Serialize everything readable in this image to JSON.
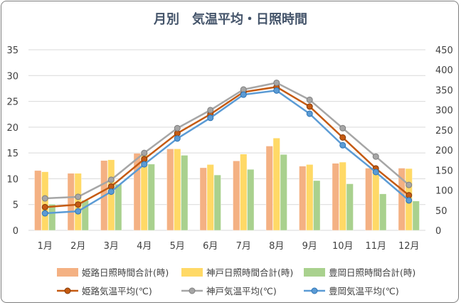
{
  "chart_data": {
    "type": "bar",
    "title": "月別　気温平均・日照時間",
    "categories": [
      "1月",
      "2月",
      "3月",
      "4月",
      "5月",
      "6月",
      "7月",
      "8月",
      "9月",
      "10月",
      "11月",
      "12月"
    ],
    "y_left": {
      "min": 0,
      "max": 35,
      "step": 5,
      "ticks": [
        "0",
        "5",
        "10",
        "15",
        "20",
        "25",
        "30",
        "35"
      ]
    },
    "y_right": {
      "min": 0,
      "max": 450,
      "step": 50,
      "ticks": [
        "0",
        "50",
        "100",
        "150",
        "200",
        "250",
        "300",
        "350",
        "400",
        "450"
      ]
    },
    "grid": true,
    "legend_position": "bottom",
    "bar_series": [
      {
        "name": "姫路日照時間合計(時)",
        "axis": "right",
        "color": "#f4b183",
        "values": [
          149,
          142,
          174,
          192,
          203,
          156,
          173,
          210,
          160,
          167,
          155,
          155
        ]
      },
      {
        "name": "神戸日照時間合計(時)",
        "axis": "right",
        "color": "#ffd966",
        "values": [
          146,
          142,
          176,
          193,
          203,
          164,
          190,
          230,
          164,
          170,
          150,
          154
        ]
      },
      {
        "name": "豊岡日照時間合計(時)",
        "axis": "right",
        "color": "#a9d18e",
        "values": [
          65,
          75,
          115,
          165,
          187,
          138,
          152,
          189,
          124,
          116,
          91,
          73
        ]
      }
    ],
    "line_series": [
      {
        "name": "姫路気温平均(℃)",
        "axis": "left",
        "color": "#c55a11",
        "values": [
          4.5,
          5.0,
          8.5,
          13.8,
          18.8,
          22.5,
          26.8,
          27.8,
          24.0,
          18.0,
          12.0,
          6.8
        ]
      },
      {
        "name": "神戸気温平均(℃)",
        "axis": "left",
        "color": "#a6a6a6",
        "values": [
          6.2,
          6.5,
          9.8,
          15.0,
          19.8,
          23.3,
          27.3,
          28.6,
          25.3,
          19.8,
          14.3,
          8.8
        ]
      },
      {
        "name": "豊岡気温平均(℃)",
        "axis": "left",
        "color": "#5b9bd5",
        "values": [
          3.3,
          3.7,
          7.5,
          12.8,
          17.8,
          21.8,
          26.3,
          27.1,
          22.6,
          16.5,
          11.3,
          5.8
        ]
      }
    ]
  }
}
